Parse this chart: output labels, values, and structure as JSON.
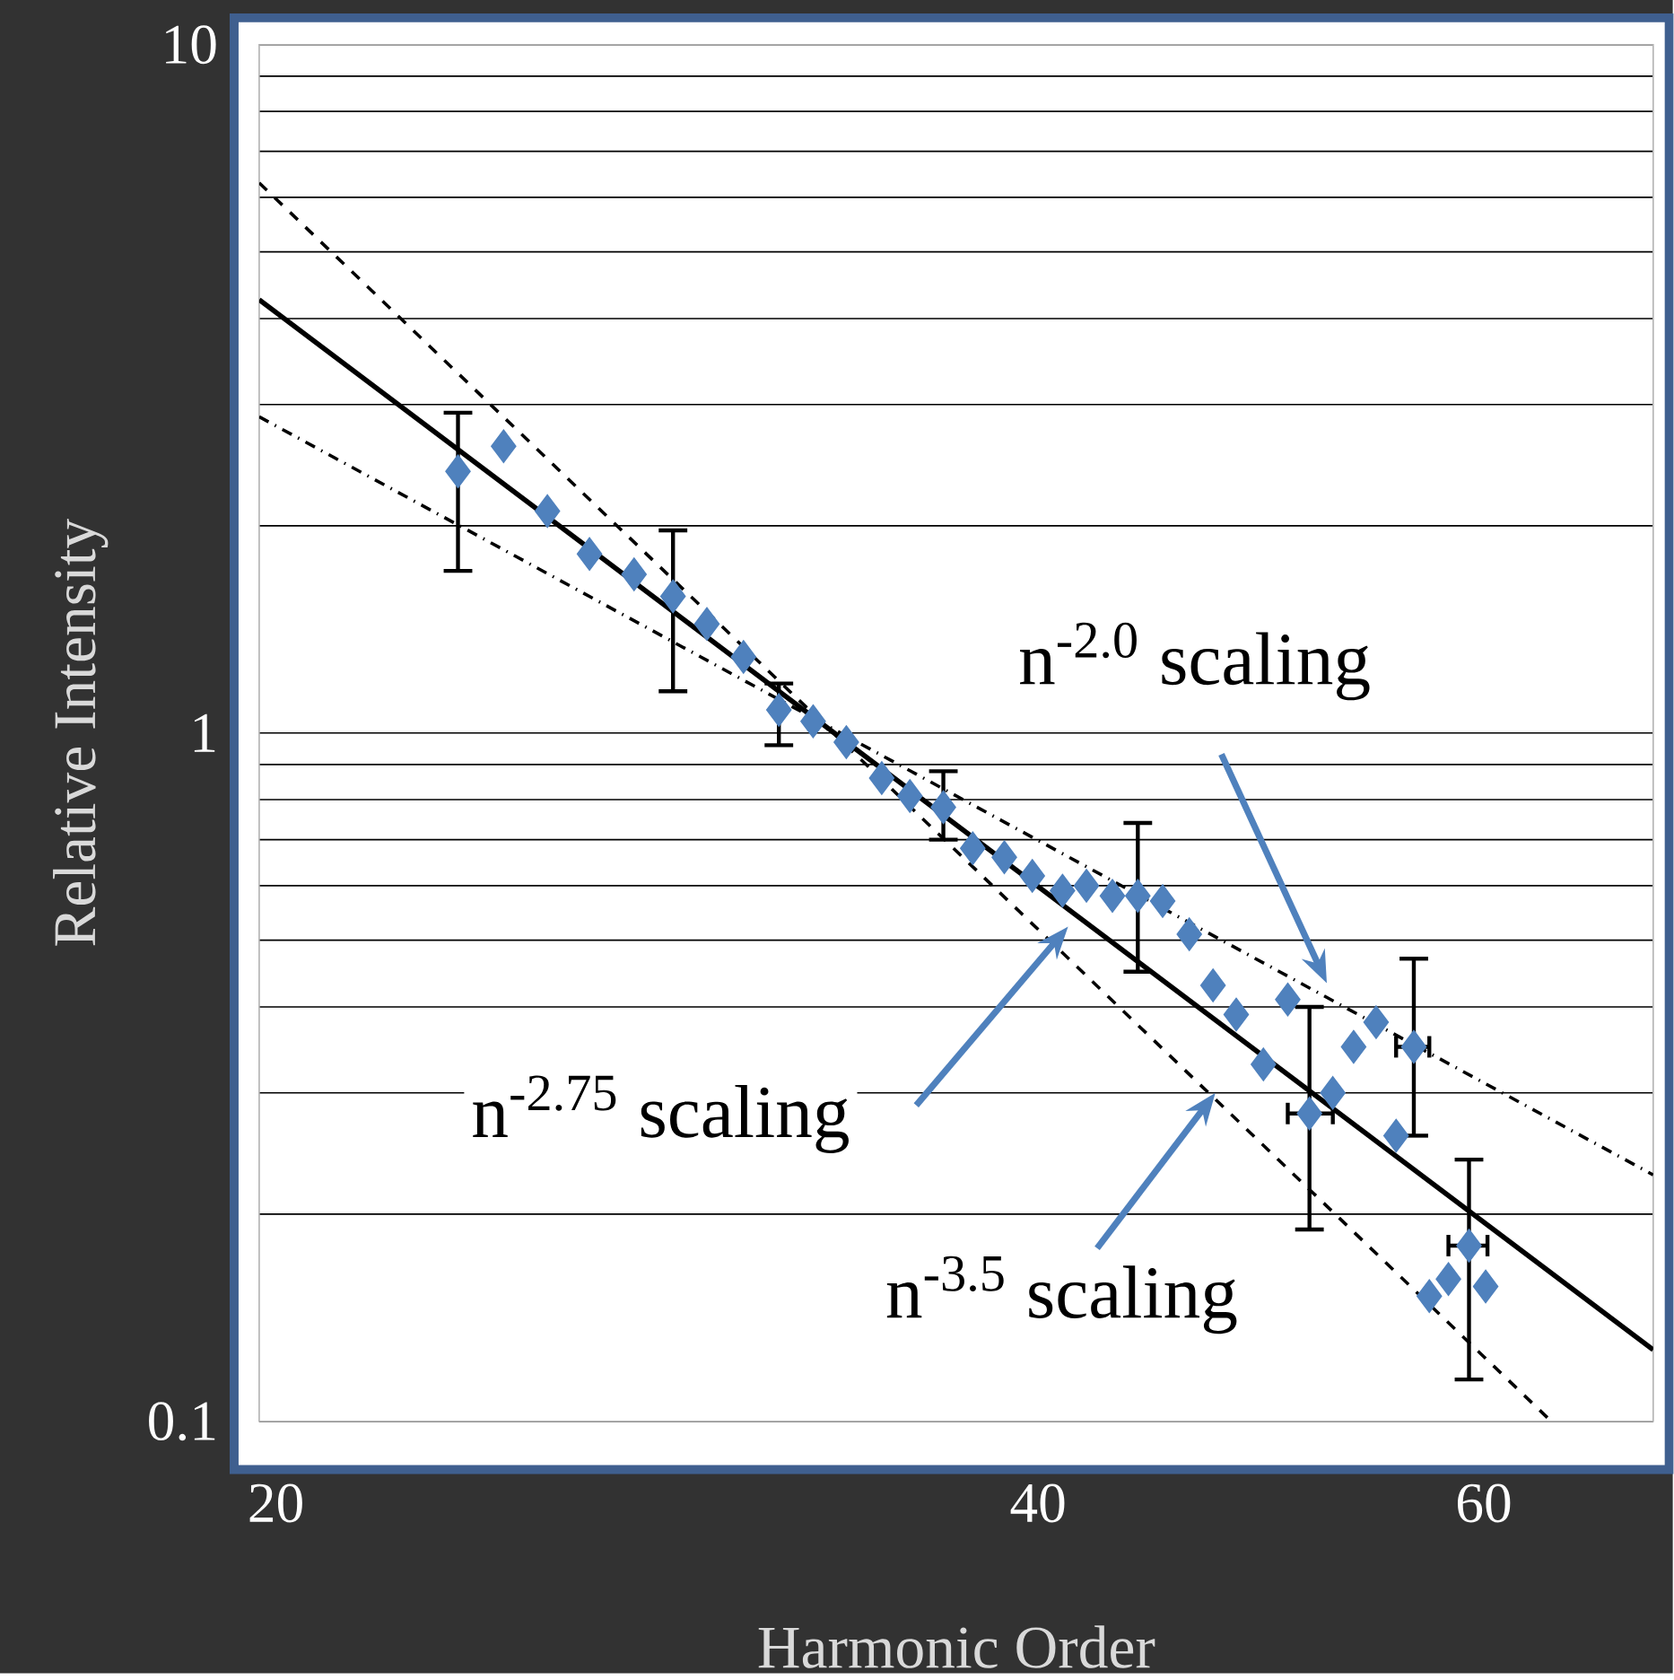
{
  "chart_data": {
    "type": "scatter",
    "xlabel": "Harmonic Order",
    "ylabel": "Relative Intensity",
    "log": "xy",
    "grid": "y",
    "marker": "diamond",
    "xlim": [
      19.7,
      70
    ],
    "ylim": [
      0.1,
      10
    ],
    "xticks": [
      20,
      40,
      60
    ],
    "yticks": [
      0.1,
      1,
      10
    ],
    "series": [
      {
        "color": "#4f81bd",
        "x": [
          23.6,
          24.6,
          25.6,
          26.6,
          27.7,
          28.7,
          29.6,
          30.6,
          31.6,
          32.6,
          33.6,
          34.7,
          35.6,
          36.7,
          37.7,
          38.8,
          39.8,
          40.9,
          41.8,
          42.8,
          43.8,
          44.8,
          45.9,
          46.9,
          47.9,
          49.1,
          50.2,
          51.2,
          52.3,
          53.3,
          54.4,
          55.4,
          56.3,
          57.1,
          58.1,
          59.2,
          60.1
        ],
        "values": [
          2.4,
          2.61,
          2.1,
          1.82,
          1.7,
          1.58,
          1.44,
          1.29,
          1.08,
          1.04,
          0.97,
          0.86,
          0.81,
          0.78,
          0.68,
          0.66,
          0.62,
          0.59,
          0.6,
          0.58,
          0.58,
          0.57,
          0.51,
          0.43,
          0.39,
          0.33,
          0.41,
          0.28,
          0.3,
          0.35,
          0.38,
          0.26,
          0.35,
          0.152,
          0.161,
          0.18,
          0.157
        ],
        "errors": [
          [
            1.72,
            2.92
          ],
          null,
          null,
          null,
          null,
          [
            1.15,
            1.97
          ],
          null,
          null,
          [
            0.96,
            1.18
          ],
          null,
          null,
          null,
          null,
          [
            0.7,
            0.88
          ],
          null,
          null,
          null,
          null,
          null,
          null,
          [
            0.45,
            0.74
          ],
          null,
          null,
          null,
          null,
          null,
          null,
          [
            0.19,
            0.4
          ],
          null,
          null,
          null,
          null,
          [
            0.26,
            0.47
          ],
          null,
          null,
          [
            0.115,
            0.24
          ],
          null
        ],
        "xerrors": [
          null,
          null,
          null,
          null,
          null,
          null,
          null,
          null,
          null,
          null,
          null,
          null,
          null,
          null,
          null,
          null,
          null,
          null,
          null,
          null,
          null,
          null,
          null,
          null,
          null,
          null,
          null,
          [
            50.2,
            52.3
          ],
          null,
          null,
          null,
          null,
          [
            55.4,
            57.1
          ],
          null,
          null,
          [
            58.1,
            60.2
          ],
          null
        ]
      },
      {
        "type": "line",
        "color": "#000000",
        "line_style": "solid",
        "marker": "none",
        "x": [
          19.7,
          70
        ],
        "values": [
          4.26,
          0.127
        ]
      },
      {
        "type": "line",
        "color": "#000000",
        "line_style": "dashed",
        "marker": "none",
        "x": [
          19.7,
          63.8
        ],
        "values": [
          6.3,
          0.1
        ]
      },
      {
        "type": "line",
        "color": "#000000",
        "line_style": "dashdot",
        "marker": "none",
        "x": [
          19.7,
          70
        ],
        "values": [
          2.88,
          0.228
        ]
      }
    ],
    "annotations": [
      "n$^{-2.0}$ scaling",
      "n$^{-2.75}$ scaling",
      {
        "text": "n$^{-3.5}$ scaling",
        "x": 47.0,
        "y": 0.3
      }
    ]
  }
}
